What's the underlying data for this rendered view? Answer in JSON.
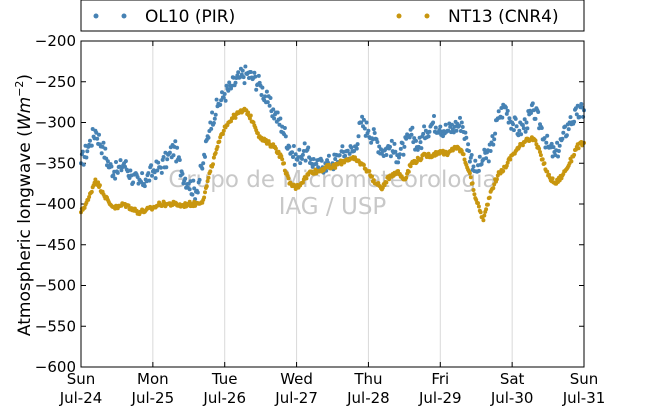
{
  "chart_data": {
    "type": "scatter",
    "ylabel": "Atmospheric longwave",
    "ylabel_unit_base": "W",
    "ylabel_unit_m": "m",
    "ylabel_unit_exp": "−2",
    "ylim": [
      -600,
      -200
    ],
    "yticks": [
      -200,
      -250,
      -300,
      -350,
      -400,
      -450,
      -500,
      -550,
      -600
    ],
    "ytick_labels": [
      "−200",
      "−250",
      "−300",
      "−350",
      "−400",
      "−450",
      "−500",
      "−550",
      "−600"
    ],
    "xlim": [
      0,
      7
    ],
    "xticks": [
      {
        "x": 0,
        "day": "Sun",
        "date": "Jul-24"
      },
      {
        "x": 1,
        "day": "Mon",
        "date": "Jul-25"
      },
      {
        "x": 2,
        "day": "Tue",
        "date": "Jul-26"
      },
      {
        "x": 3,
        "day": "Wed",
        "date": "Jul-27"
      },
      {
        "x": 4,
        "day": "Thu",
        "date": "Jul-28"
      },
      {
        "x": 5,
        "day": "Fri",
        "date": "Jul-29"
      },
      {
        "x": 6,
        "day": "Sat",
        "date": "Jul-30"
      },
      {
        "x": 7,
        "day": "Sun",
        "date": "Jul-31"
      }
    ],
    "grid": "vertical",
    "legend_position": "top, above plot",
    "watermark": [
      "Grupo de Micrometeorologia",
      "IAG / USP"
    ],
    "series": [
      {
        "name": "OL10 (PIR)",
        "color": "#4682b4",
        "x": [
          0.0,
          0.1,
          0.2,
          0.3,
          0.4,
          0.5,
          0.6,
          0.7,
          0.8,
          0.9,
          1.0,
          1.1,
          1.2,
          1.3,
          1.4,
          1.5,
          1.6,
          1.7,
          1.8,
          1.9,
          2.0,
          2.1,
          2.2,
          2.3,
          2.4,
          2.5,
          2.6,
          2.7,
          2.8,
          2.9,
          3.0,
          3.1,
          3.2,
          3.3,
          3.4,
          3.5,
          3.6,
          3.7,
          3.8,
          3.9,
          4.0,
          4.1,
          4.2,
          4.3,
          4.4,
          4.5,
          4.6,
          4.7,
          4.8,
          4.9,
          5.0,
          5.1,
          5.2,
          5.3,
          5.4,
          5.5,
          5.6,
          5.7,
          5.8,
          5.9,
          6.0,
          6.1,
          6.2,
          6.3,
          6.4,
          6.5,
          6.6,
          6.7,
          6.8,
          6.9,
          7.0
        ],
        "y": [
          -350,
          -330,
          -310,
          -330,
          -355,
          -360,
          -350,
          -365,
          -375,
          -370,
          -360,
          -355,
          -345,
          -330,
          -360,
          -375,
          -385,
          -350,
          -300,
          -280,
          -265,
          -255,
          -245,
          -240,
          -245,
          -255,
          -275,
          -290,
          -305,
          -330,
          -345,
          -335,
          -345,
          -355,
          -350,
          -350,
          -340,
          -335,
          -335,
          -300,
          -310,
          -320,
          -335,
          -330,
          -340,
          -330,
          -315,
          -330,
          -310,
          -300,
          -305,
          -310,
          -305,
          -300,
          -335,
          -360,
          -345,
          -335,
          -295,
          -280,
          -300,
          -310,
          -300,
          -285,
          -305,
          -330,
          -340,
          -320,
          -300,
          -290,
          -285
        ]
      },
      {
        "name": "NT13 (CNR4)",
        "color": "#c8960f",
        "x": [
          0.0,
          0.1,
          0.2,
          0.3,
          0.4,
          0.5,
          0.6,
          0.7,
          0.8,
          0.9,
          1.0,
          1.1,
          1.2,
          1.3,
          1.4,
          1.5,
          1.6,
          1.7,
          1.8,
          1.9,
          2.0,
          2.1,
          2.2,
          2.3,
          2.4,
          2.5,
          2.6,
          2.7,
          2.8,
          2.9,
          3.0,
          3.1,
          3.2,
          3.3,
          3.4,
          3.5,
          3.6,
          3.7,
          3.8,
          3.9,
          4.0,
          4.1,
          4.2,
          4.3,
          4.4,
          4.5,
          4.6,
          4.7,
          4.8,
          4.9,
          5.0,
          5.1,
          5.2,
          5.3,
          5.4,
          5.5,
          5.6,
          5.7,
          5.8,
          5.9,
          6.0,
          6.1,
          6.2,
          6.3,
          6.4,
          6.5,
          6.6,
          6.7,
          6.8,
          6.9,
          7.0
        ],
        "y": [
          -410,
          -395,
          -370,
          -385,
          -400,
          -405,
          -400,
          -405,
          -410,
          -408,
          -405,
          -400,
          -400,
          -400,
          -402,
          -400,
          -400,
          -395,
          -360,
          -330,
          -305,
          -295,
          -288,
          -285,
          -300,
          -320,
          -325,
          -330,
          -345,
          -375,
          -380,
          -370,
          -360,
          -360,
          -355,
          -355,
          -350,
          -345,
          -345,
          -350,
          -360,
          -375,
          -380,
          -365,
          -360,
          -370,
          -350,
          -345,
          -340,
          -340,
          -335,
          -340,
          -330,
          -335,
          -360,
          -395,
          -420,
          -385,
          -365,
          -355,
          -340,
          -330,
          -320,
          -320,
          -340,
          -365,
          -375,
          -365,
          -350,
          -330,
          -325
        ]
      }
    ]
  }
}
